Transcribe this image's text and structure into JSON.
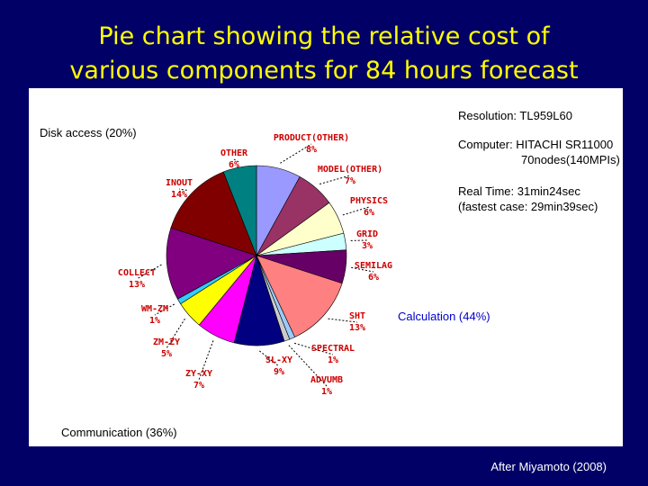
{
  "title_line1": "Pie chart showing the relative cost of",
  "title_line2": "various components for 84 hours forecast",
  "notes": {
    "resolution": "Resolution: TL959L60",
    "computer_line1": "Computer: HITACHI SR11000",
    "computer_line2": "70nodes(140MPIs)",
    "realtime_line1": "Real Time: 31min24sec",
    "realtime_line2": "(fastest case: 29min39sec)"
  },
  "groups": {
    "disk": "Disk access (20%)",
    "calc": "Calculation (44%)",
    "comm": "Communication (36%)"
  },
  "footer": "After Miyamoto (2008)",
  "colors": {
    "background": "#000066",
    "title": "#ffff00",
    "label": "#cc0000",
    "calc_label": "#0000cc"
  },
  "chart_data": {
    "type": "pie",
    "start_angle_deg": 0,
    "direction": "clockwise",
    "slices": [
      {
        "name": "PRODUCT(OTHER)",
        "percent_label": "8%",
        "value": 8,
        "color": "#9999ff"
      },
      {
        "name": "MODEL(OTHER)",
        "percent_label": "7%",
        "value": 7,
        "color": "#993366"
      },
      {
        "name": "PHYSICS",
        "percent_label": "6%",
        "value": 6,
        "color": "#ffffcc"
      },
      {
        "name": "GRID",
        "percent_label": "3%",
        "value": 3,
        "color": "#ccffff"
      },
      {
        "name": "SEMILAG",
        "percent_label": "6%",
        "value": 6,
        "color": "#660066"
      },
      {
        "name": "SHT",
        "percent_label": "13%",
        "value": 13,
        "color": "#ff8080"
      },
      {
        "name": "SPECTRAL",
        "percent_label": "1%",
        "value": 1,
        "color": "#99ccff"
      },
      {
        "name": "ADVUMB",
        "percent_label": "1%",
        "value": 1,
        "color": "#cccccc"
      },
      {
        "name": "SL-XY",
        "percent_label": "9%",
        "value": 9,
        "color": "#000080"
      },
      {
        "name": "ZY-XY",
        "percent_label": "7%",
        "value": 7,
        "color": "#ff00ff"
      },
      {
        "name": "ZM-ZY",
        "percent_label": "5%",
        "value": 5,
        "color": "#ffff00"
      },
      {
        "name": "WM-ZM",
        "percent_label": "1%",
        "value": 1,
        "color": "#33ccff"
      },
      {
        "name": "COLLECT",
        "percent_label": "13%",
        "value": 13,
        "color": "#800080"
      },
      {
        "name": "INOUT",
        "percent_label": "14%",
        "value": 14,
        "color": "#800000"
      },
      {
        "name": "OTHER",
        "percent_label": "6%",
        "value": 6,
        "color": "#008080"
      }
    ]
  }
}
